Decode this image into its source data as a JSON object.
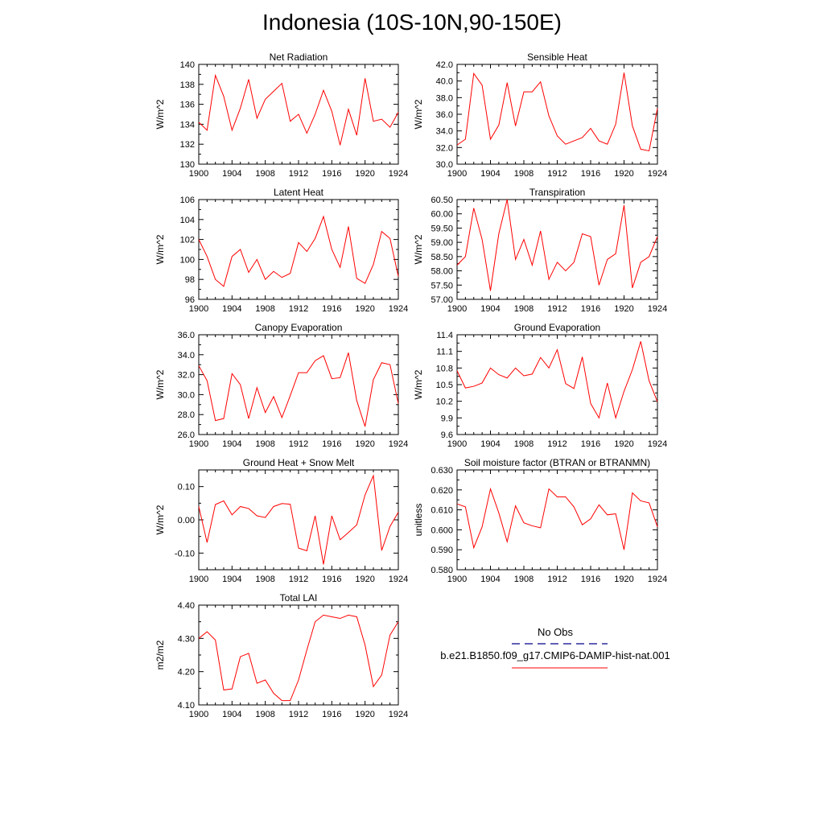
{
  "title": "Indonesia (10S-10N,90-150E)",
  "colors": {
    "model_line": "#ff0000",
    "obs_line": "#00008b",
    "axis": "#000000"
  },
  "legend": {
    "obs_label": "No Obs",
    "model_label": "b.e21.B1850.f09_g17.CMIP6-DAMIP-hist-nat.001"
  },
  "chart_data": [
    {
      "type": "line",
      "title": "Net Radiation",
      "xlabel": "",
      "ylabel": "W/m^2",
      "xlim": [
        1900,
        1924
      ],
      "ylim": [
        130,
        140
      ],
      "xticks": [
        1900,
        1904,
        1908,
        1912,
        1916,
        1920,
        1924
      ],
      "yticks": [
        130,
        132,
        134,
        136,
        138,
        140
      ],
      "yticklabels": [
        "130",
        "132",
        "134",
        "136",
        "138",
        "140"
      ],
      "series": [
        {
          "values": [
            134.2,
            133.4,
            138.9,
            136.8,
            133.4,
            135.6,
            138.5,
            134.6,
            136.5,
            137.3,
            138.1,
            134.3,
            135.0,
            133.1,
            135.0,
            137.4,
            135.3,
            131.9,
            135.5,
            132.9,
            138.6,
            134.3,
            134.5,
            133.7,
            135.2
          ]
        }
      ]
    },
    {
      "type": "line",
      "title": "Sensible Heat",
      "xlabel": "",
      "ylabel": "W/m^2",
      "xlim": [
        1900,
        1924
      ],
      "ylim": [
        30,
        42
      ],
      "xticks": [
        1900,
        1904,
        1908,
        1912,
        1916,
        1920,
        1924
      ],
      "yticks": [
        30,
        32,
        34,
        36,
        38,
        40,
        42
      ],
      "yticklabels": [
        "30.0",
        "32.0",
        "34.0",
        "36.0",
        "38.0",
        "40.0",
        "42.0"
      ],
      "series": [
        {
          "values": [
            32.3,
            33.0,
            40.9,
            39.5,
            33.0,
            34.7,
            39.8,
            34.6,
            38.7,
            38.7,
            39.9,
            35.8,
            33.4,
            32.4,
            32.8,
            33.2,
            34.3,
            32.8,
            32.4,
            34.8,
            41.0,
            34.6,
            31.8,
            31.6,
            36.7
          ]
        }
      ]
    },
    {
      "type": "line",
      "title": "Latent Heat",
      "xlabel": "",
      "ylabel": "W/m^2",
      "xlim": [
        1900,
        1924
      ],
      "ylim": [
        96,
        106
      ],
      "xticks": [
        1900,
        1904,
        1908,
        1912,
        1916,
        1920,
        1924
      ],
      "yticks": [
        96,
        98,
        100,
        102,
        104,
        106
      ],
      "yticklabels": [
        "96",
        "98",
        "100",
        "102",
        "104",
        "106"
      ],
      "series": [
        {
          "values": [
            102.0,
            100.3,
            98.0,
            97.3,
            100.3,
            101.0,
            98.7,
            100.0,
            98.0,
            98.8,
            98.2,
            98.6,
            101.7,
            100.8,
            102.1,
            104.3,
            101.0,
            99.2,
            103.3,
            98.1,
            97.6,
            99.5,
            102.8,
            102.1,
            98.3
          ]
        }
      ]
    },
    {
      "type": "line",
      "title": "Transpiration",
      "xlabel": "",
      "ylabel": "W/m^2",
      "xlim": [
        1900,
        1924
      ],
      "ylim": [
        57,
        60.5
      ],
      "xticks": [
        1900,
        1904,
        1908,
        1912,
        1916,
        1920,
        1924
      ],
      "yticks": [
        57,
        57.5,
        58,
        58.5,
        59,
        59.5,
        60,
        60.5
      ],
      "yticklabels": [
        "57.00",
        "57.50",
        "58.00",
        "58.50",
        "59.00",
        "59.50",
        "60.00",
        "60.50"
      ],
      "series": [
        {
          "values": [
            58.2,
            58.5,
            60.2,
            59.1,
            57.3,
            59.3,
            60.5,
            58.4,
            59.1,
            58.2,
            59.4,
            57.7,
            58.3,
            58.0,
            58.3,
            59.3,
            59.2,
            57.5,
            58.4,
            58.6,
            60.3,
            57.4,
            58.3,
            58.5,
            59.2
          ]
        }
      ]
    },
    {
      "type": "line",
      "title": "Canopy Evaporation",
      "xlabel": "",
      "ylabel": "W/m^2",
      "xlim": [
        1900,
        1924
      ],
      "ylim": [
        26,
        36
      ],
      "xticks": [
        1900,
        1904,
        1908,
        1912,
        1916,
        1920,
        1924
      ],
      "yticks": [
        26,
        28,
        30,
        32,
        34,
        36
      ],
      "yticklabels": [
        "26.0",
        "28.0",
        "30.0",
        "32.0",
        "34.0",
        "36.0"
      ],
      "series": [
        {
          "values": [
            32.9,
            31.4,
            27.4,
            27.6,
            32.1,
            31.0,
            27.6,
            30.7,
            28.2,
            29.8,
            27.7,
            29.9,
            32.2,
            32.2,
            33.4,
            33.9,
            31.6,
            31.7,
            34.2,
            29.4,
            26.8,
            31.5,
            33.2,
            33.0,
            29.1
          ]
        }
      ]
    },
    {
      "type": "line",
      "title": "Ground Evaporation",
      "xlabel": "",
      "ylabel": "W/m^2",
      "xlim": [
        1900,
        1924
      ],
      "ylim": [
        9.6,
        11.4
      ],
      "xticks": [
        1900,
        1904,
        1908,
        1912,
        1916,
        1920,
        1924
      ],
      "yticks": [
        9.6,
        9.9,
        10.2,
        10.5,
        10.8,
        11.1,
        11.4
      ],
      "yticklabels": [
        "9.6",
        "9.9",
        "10.2",
        "10.5",
        "10.8",
        "11.1",
        "11.4"
      ],
      "series": [
        {
          "values": [
            10.75,
            10.44,
            10.47,
            10.53,
            10.8,
            10.68,
            10.62,
            10.8,
            10.66,
            10.69,
            10.99,
            10.8,
            11.13,
            10.52,
            10.43,
            11.0,
            10.16,
            9.9,
            10.53,
            9.9,
            10.38,
            10.77,
            11.28,
            10.57,
            10.19
          ]
        }
      ]
    },
    {
      "type": "line",
      "title": "Ground Heat + Snow Melt",
      "xlabel": "",
      "ylabel": "W/m^2",
      "xlim": [
        1900,
        1924
      ],
      "ylim": [
        -0.15,
        0.15
      ],
      "xticks": [
        1900,
        1904,
        1908,
        1912,
        1916,
        1920,
        1924
      ],
      "yticks": [
        -0.1,
        0,
        0.1
      ],
      "yticklabels": [
        "-0.10",
        "0.00",
        "0.10"
      ],
      "series": [
        {
          "values": [
            0.04,
            -0.068,
            0.046,
            0.057,
            0.015,
            0.04,
            0.034,
            0.012,
            0.007,
            0.04,
            0.049,
            0.047,
            -0.085,
            -0.093,
            0.012,
            -0.134,
            0.012,
            -0.06,
            -0.038,
            -0.015,
            0.075,
            0.133,
            -0.092,
            -0.02,
            0.023
          ]
        }
      ]
    },
    {
      "type": "line",
      "title": "Soil moisture factor (BTRAN or BTRANMN)",
      "xlabel": "",
      "ylabel": "unitless",
      "xlim": [
        1900,
        1924
      ],
      "ylim": [
        0.58,
        0.63
      ],
      "xticks": [
        1900,
        1904,
        1908,
        1912,
        1916,
        1920,
        1924
      ],
      "yticks": [
        0.58,
        0.59,
        0.6,
        0.61,
        0.62,
        0.63
      ],
      "yticklabels": [
        "0.580",
        "0.590",
        "0.600",
        "0.610",
        "0.620",
        "0.630"
      ],
      "series": [
        {
          "values": [
            0.613,
            0.6115,
            0.591,
            0.6015,
            0.6205,
            0.6085,
            0.594,
            0.612,
            0.6035,
            0.602,
            0.601,
            0.6205,
            0.6165,
            0.6165,
            0.6115,
            0.6025,
            0.6055,
            0.6125,
            0.6075,
            0.608,
            0.59,
            0.6185,
            0.6145,
            0.6135,
            0.6015
          ]
        }
      ]
    },
    {
      "type": "line",
      "title": "Total LAI",
      "xlabel": "",
      "ylabel": "m2/m2",
      "xlim": [
        1900,
        1924
      ],
      "ylim": [
        4.1,
        4.4
      ],
      "xticks": [
        1900,
        1904,
        1908,
        1912,
        1916,
        1920,
        1924
      ],
      "yticks": [
        4.1,
        4.2,
        4.3,
        4.4
      ],
      "yticklabels": [
        "4.10",
        "4.20",
        "4.30",
        "4.40"
      ],
      "series": [
        {
          "values": [
            4.3,
            4.32,
            4.295,
            4.145,
            4.148,
            4.245,
            4.255,
            4.165,
            4.175,
            4.135,
            4.113,
            4.113,
            4.175,
            4.265,
            4.35,
            4.37,
            4.365,
            4.36,
            4.37,
            4.365,
            4.28,
            4.155,
            4.19,
            4.31,
            4.35
          ]
        }
      ]
    }
  ]
}
